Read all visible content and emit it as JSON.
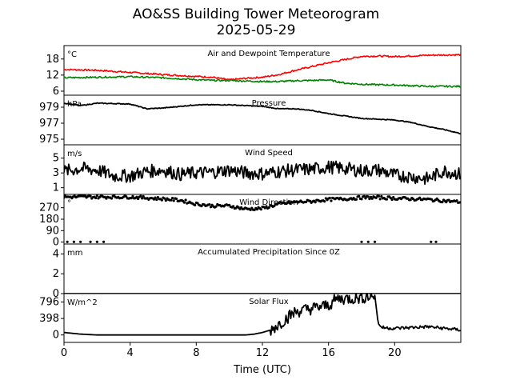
{
  "figure": {
    "title_line1": "AO&SS Building Tower Meteorogram",
    "title_line2": "2025-05-29",
    "xlabel": "Time (UTC)",
    "x_ticks": [
      0,
      4,
      8,
      12,
      16,
      20
    ],
    "xlim": [
      0,
      24
    ]
  },
  "colors": {
    "temperature": "#ff0000",
    "dewpoint": "#008000",
    "series": "#000000"
  },
  "chart_data": [
    {
      "type": "line",
      "title": "Air and Dewpoint Temperature",
      "unit": "°C",
      "ylim": [
        4.5,
        23
      ],
      "y_ticks": [
        6,
        12,
        18
      ],
      "x": [
        0,
        2,
        4,
        6,
        8,
        9,
        10,
        11,
        12,
        13,
        14,
        15,
        16,
        17,
        18,
        19,
        20,
        22,
        24
      ],
      "series": [
        {
          "color_key": "temperature",
          "values": [
            14.1,
            13.8,
            13.0,
            12.2,
            11.5,
            11.2,
            10.2,
            10.8,
            11.2,
            12.2,
            13.8,
            15.2,
            16.6,
            17.8,
            19.0,
            19.1,
            18.9,
            19.4,
            19.6
          ]
        },
        {
          "color_key": "dewpoint",
          "values": [
            11.0,
            11.2,
            11.4,
            11.0,
            10.3,
            10.0,
            10.0,
            9.8,
            9.6,
            9.6,
            9.9,
            10.0,
            10.2,
            9.0,
            8.6,
            8.4,
            8.3,
            7.8,
            7.8
          ]
        }
      ]
    },
    {
      "type": "line",
      "title": "Pressure",
      "unit": "hPa",
      "ylim": [
        974.3,
        980.5
      ],
      "y_ticks": [
        975,
        977,
        979
      ],
      "x": [
        0,
        1,
        2,
        4,
        5,
        6,
        8,
        10,
        11,
        12,
        13,
        14,
        15,
        16,
        17,
        18,
        19,
        20,
        21,
        22,
        23,
        24
      ],
      "series": [
        {
          "color_key": "series",
          "values": [
            979.5,
            979.2,
            979.5,
            979.4,
            978.8,
            978.9,
            979.3,
            979.3,
            979.2,
            979.1,
            978.8,
            978.8,
            978.6,
            978.2,
            977.9,
            977.6,
            977.5,
            977.4,
            977.1,
            976.6,
            976.2,
            975.7
          ]
        }
      ]
    },
    {
      "type": "line",
      "title": "Wind Speed",
      "unit": "m/s",
      "ylim": [
        0.1,
        6.8
      ],
      "y_ticks": [
        1,
        3,
        5
      ],
      "x": [
        0,
        1,
        2,
        3,
        4,
        5,
        6,
        7,
        8,
        9,
        10,
        11,
        12,
        13,
        14,
        15,
        16,
        17,
        18,
        19,
        20,
        21,
        22,
        23,
        24
      ],
      "series": [
        {
          "color_key": "series",
          "values": [
            3.2,
            3.6,
            3.4,
            2.6,
            2.6,
            3.2,
            3.4,
            2.8,
            3.0,
            3.1,
            3.4,
            3.0,
            2.9,
            3.2,
            3.4,
            3.5,
            3.8,
            3.6,
            3.3,
            3.4,
            2.7,
            2.5,
            2.2,
            3.3,
            2.8
          ]
        }
      ]
    },
    {
      "type": "scatter",
      "title": "Wind Direction",
      "unit": "°",
      "ylim": [
        -15,
        375
      ],
      "y_ticks": [
        0,
        90,
        180,
        270
      ],
      "x": [
        0,
        2,
        4,
        6,
        7,
        8,
        9,
        10,
        11,
        12,
        13,
        14,
        15,
        16,
        17,
        18,
        19,
        20,
        21,
        22,
        23,
        24
      ],
      "series": [
        {
          "color_key": "series",
          "values": [
            355,
            355,
            355,
            340,
            330,
            300,
            285,
            285,
            260,
            265,
            300,
            315,
            320,
            335,
            340,
            350,
            350,
            345,
            340,
            335,
            325,
            315
          ]
        }
      ],
      "low_points": [
        0.2,
        0.6,
        1.0,
        1.6,
        2.0,
        2.4,
        18.0,
        18.4,
        18.8,
        22.2,
        22.5
      ]
    },
    {
      "type": "line",
      "title": "Accumulated Precipitation Since 0Z",
      "unit": "mm",
      "ylim": [
        0,
        5
      ],
      "y_ticks": [
        0,
        2,
        4
      ],
      "x": [
        0,
        24
      ],
      "series": [
        {
          "color_key": "series",
          "values": [
            0,
            0
          ]
        }
      ]
    },
    {
      "type": "line",
      "title": "Solar Flux",
      "unit": "W/m^2",
      "ylim": [
        -180,
        1000
      ],
      "y_ticks": [
        0,
        398,
        796
      ],
      "x": [
        0,
        1,
        2,
        4,
        6,
        8,
        10,
        11,
        11.5,
        12,
        12.5,
        13,
        13.5,
        14,
        15,
        16,
        16.5,
        17,
        18,
        18.8,
        19,
        19.2,
        20,
        22,
        23,
        24
      ],
      "series": [
        {
          "color_key": "series",
          "values": [
            60,
            20,
            0,
            0,
            0,
            0,
            0,
            0,
            20,
            60,
            120,
            260,
            420,
            560,
            640,
            720,
            870,
            880,
            900,
            960,
            280,
            180,
            160,
            200,
            160,
            120
          ]
        }
      ]
    }
  ]
}
